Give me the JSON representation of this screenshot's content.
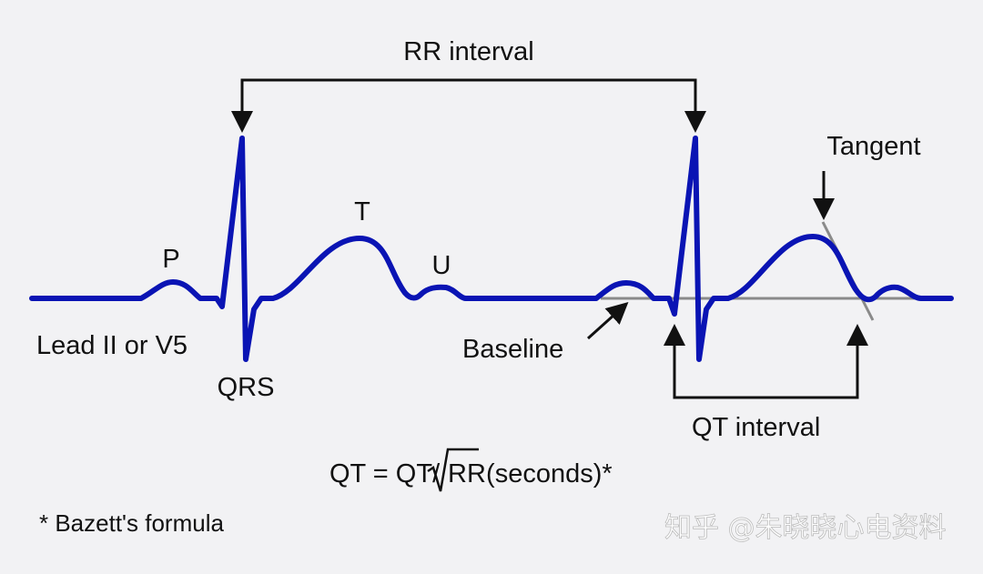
{
  "labels": {
    "rr_interval": "RR interval",
    "tangent": "Tangent",
    "p": "P",
    "t": "T",
    "u": "U",
    "qrs": "QRS",
    "lead": "Lead II or V5",
    "baseline": "Baseline",
    "qt_interval": "QT interval",
    "formula_left": "QT = QT/",
    "formula_rr": "RR",
    "formula_right": " (seconds)*",
    "footnote": "* Bazett's formula"
  },
  "watermark": "知乎 @朱晓晓心电资料",
  "colors": {
    "trace": "#0a14b4",
    "baseline_line": "#8a8a8a",
    "arrows": "#111111",
    "background": "#f2f2f4"
  }
}
